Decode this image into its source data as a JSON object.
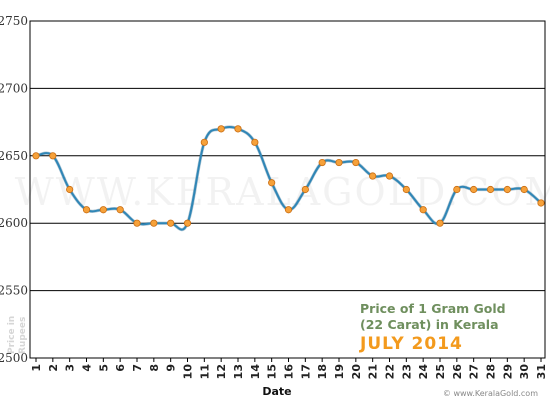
{
  "chart_data": {
    "type": "line",
    "title_lines": [
      "Price of 1 Gram Gold",
      "(22 Carat) in Kerala"
    ],
    "subtitle": "JULY 2014",
    "xlabel": "Date",
    "ylabel_lines": [
      "Price in",
      "Rupees"
    ],
    "watermark": "WWW.KERALAGOLD.COM",
    "source": "© www.KeralaGold.com",
    "x": [
      1,
      2,
      3,
      4,
      5,
      6,
      7,
      8,
      9,
      10,
      11,
      12,
      13,
      14,
      15,
      16,
      17,
      18,
      19,
      20,
      21,
      22,
      23,
      24,
      25,
      26,
      27,
      28,
      29,
      30,
      31
    ],
    "values": [
      2650,
      2650,
      2625,
      2610,
      2610,
      2610,
      2600,
      2600,
      2600,
      2600,
      2660,
      2670,
      2670,
      2660,
      2630,
      2610,
      2625,
      2645,
      2645,
      2645,
      2635,
      2635,
      2625,
      2610,
      2600,
      2625,
      2625,
      2625,
      2625,
      2625,
      2615
    ],
    "ylim": [
      2500,
      2750
    ],
    "yticks": [
      2500,
      2550,
      2600,
      2650,
      2700,
      2750
    ],
    "grid": true,
    "line_color": "#2f86b6",
    "marker_color": "#f6a13a",
    "grid_color": "#000000"
  }
}
